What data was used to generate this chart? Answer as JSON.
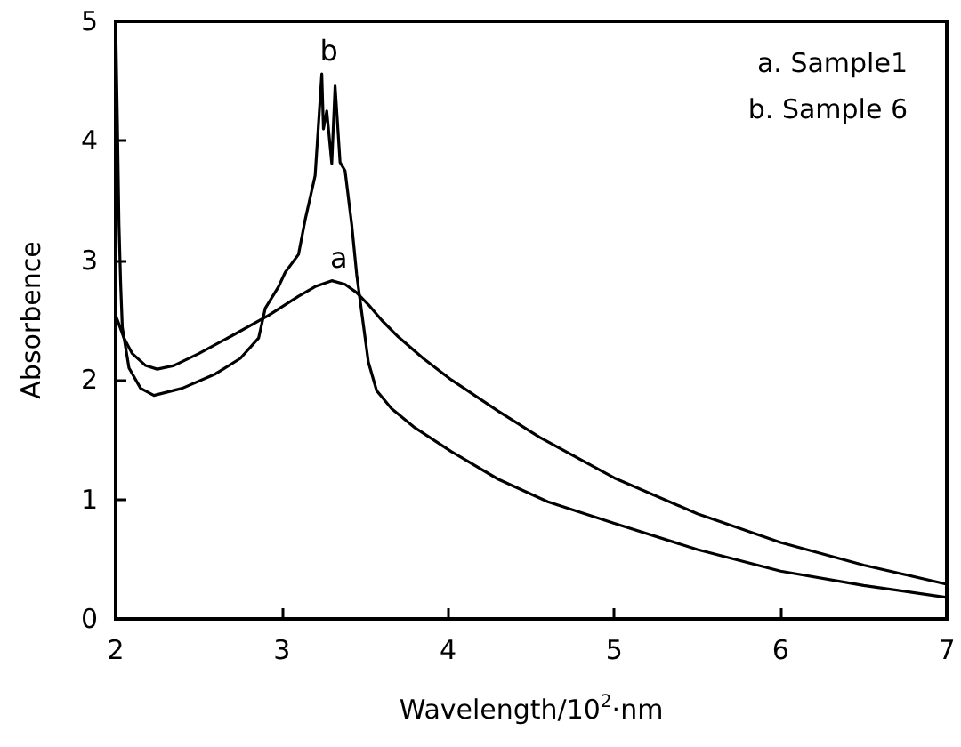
{
  "chart_data": {
    "type": "line",
    "xlabel": "Wavelength/10$^{2}$·nm",
    "ylabel": "Absorbence",
    "xlim": [
      2,
      7
    ],
    "xticks": [
      2,
      3,
      4,
      5,
      6,
      7
    ],
    "ylim": [
      0,
      5
    ],
    "yticks": [
      0,
      1,
      2,
      3,
      4,
      5
    ],
    "grid": false,
    "marker": "none",
    "line_style": "solid",
    "annotations": [
      "a. Sample1",
      "b. Sample 6"
    ],
    "series": [
      {
        "name": "a",
        "color": "#000000",
        "x": [
          2.0,
          2.05,
          2.1,
          2.18,
          2.25,
          2.35,
          2.5,
          2.7,
          2.92,
          3.1,
          3.2,
          3.3,
          3.38,
          3.45,
          3.52,
          3.6,
          3.7,
          3.85,
          4.02,
          4.3,
          4.55,
          5.0,
          5.5,
          6.0,
          6.5,
          7.0
        ],
        "values": [
          2.54,
          2.35,
          2.22,
          2.12,
          2.09,
          2.12,
          2.22,
          2.37,
          2.54,
          2.7,
          2.78,
          2.83,
          2.8,
          2.73,
          2.63,
          2.5,
          2.36,
          2.18,
          2.0,
          1.74,
          1.52,
          1.18,
          0.88,
          0.64,
          0.45,
          0.29
        ]
      },
      {
        "name": "b",
        "color": "#000000",
        "x": [
          2.0,
          2.005,
          2.01,
          2.02,
          2.03,
          2.04,
          2.08,
          2.15,
          2.23,
          2.4,
          2.6,
          2.75,
          2.86,
          2.9,
          2.98,
          3.02,
          3.1,
          3.14,
          3.2,
          3.24,
          3.25,
          3.27,
          3.3,
          3.32,
          3.35,
          3.38,
          3.42,
          3.45,
          3.52,
          3.57,
          3.66,
          3.8,
          4.02,
          4.3,
          4.6,
          5.0,
          5.5,
          6.0,
          6.5,
          7.0
        ],
        "values": [
          5.0,
          5.0,
          4.2,
          3.3,
          2.8,
          2.44,
          2.1,
          1.93,
          1.87,
          1.93,
          2.05,
          2.18,
          2.35,
          2.6,
          2.78,
          2.9,
          3.05,
          3.34,
          3.71,
          4.56,
          4.1,
          4.25,
          3.81,
          4.46,
          3.82,
          3.75,
          3.3,
          2.88,
          2.15,
          1.91,
          1.76,
          1.6,
          1.4,
          1.17,
          0.98,
          0.8,
          0.58,
          0.4,
          0.28,
          0.18
        ]
      }
    ]
  }
}
